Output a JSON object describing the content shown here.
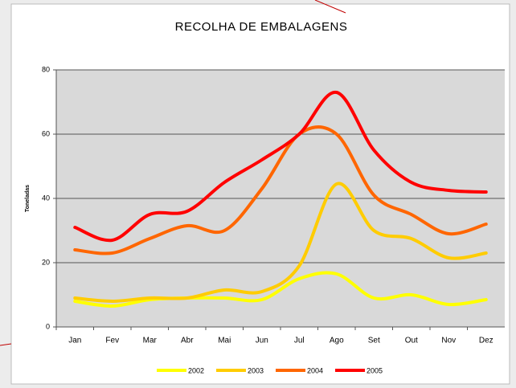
{
  "chart_data": {
    "type": "line",
    "title": "RECOLHA DE EMBALAGENS",
    "y_label": "Toneladas",
    "categories": [
      "Jan",
      "Fev",
      "Mar",
      "Abr",
      "Mai",
      "Jun",
      "Jul",
      "Ago",
      "Set",
      "Out",
      "Nov",
      "Dez"
    ],
    "series": [
      {
        "name": "2002",
        "color": "#ffff00",
        "values": [
          8,
          6.5,
          8.5,
          9,
          9,
          8.5,
          15,
          16.5,
          9,
          10,
          7,
          8.5
        ]
      },
      {
        "name": "2003",
        "color": "#ffcc00",
        "values": [
          9,
          8,
          9,
          9,
          11.5,
          11,
          19,
          44.5,
          30,
          27.5,
          21.5,
          23
        ]
      },
      {
        "name": "2004",
        "color": "#ff6600",
        "values": [
          24,
          23,
          27.5,
          31.5,
          30,
          43,
          60,
          60,
          41,
          35,
          29,
          32
        ]
      },
      {
        "name": "2005",
        "color": "#ff0000",
        "values": [
          31,
          27,
          35,
          36,
          45,
          52,
          60,
          73,
          55,
          45,
          42.5,
          42
        ]
      }
    ],
    "ylim": [
      0,
      80
    ],
    "yticks": [
      0,
      20,
      40,
      60,
      80
    ],
    "grid": true,
    "legend": "bottom"
  }
}
